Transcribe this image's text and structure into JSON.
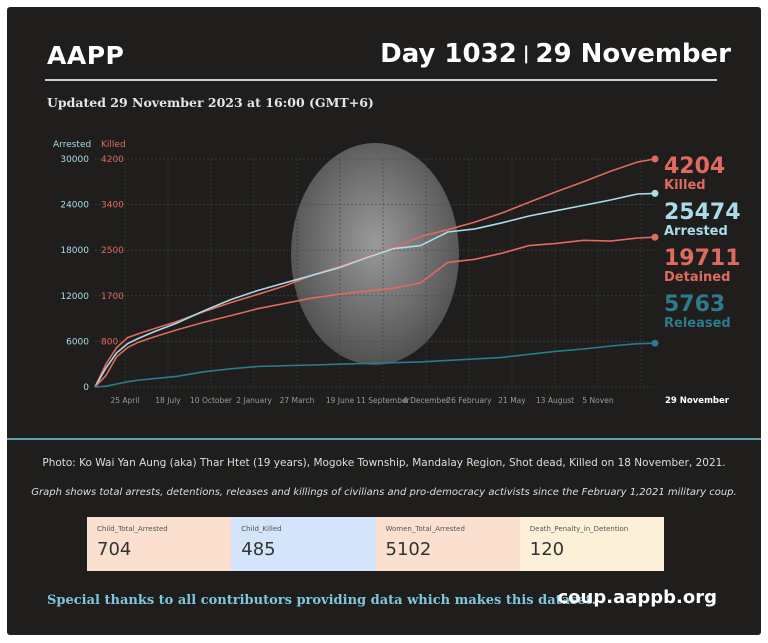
{
  "header": {
    "brand": "AAPP",
    "day": "Day 1032",
    "separator": "|",
    "date": "29 November",
    "updated": "Updated 29 November 2023 at 16:00 (GMT+6)"
  },
  "chart_data": {
    "type": "line",
    "axes": {
      "left_title": "Arrested",
      "right_title": "Killed",
      "left_ticks": [
        0,
        6000,
        12000,
        18000,
        24000,
        30000
      ],
      "left_tick_labels": [
        "0",
        "6000",
        "12000",
        "18000",
        "24000",
        "30000"
      ],
      "right_tick_labels": [
        "800",
        "1700",
        "2500",
        "3400",
        "4200"
      ],
      "ylim": [
        0,
        30000
      ],
      "x_tick_labels": [
        "25 April",
        "18 July",
        "10 October",
        "2 January",
        "27 March",
        "19 June",
        "11 September",
        "4 December",
        "26 February",
        "21 May",
        "13 August",
        "5 Noven",
        "29 November"
      ],
      "grid": true
    },
    "x_range": [
      0,
      1032
    ],
    "series": [
      {
        "name": "Killed",
        "color": "#e06a5f",
        "final_value": "4204",
        "x": [
          0,
          20,
          40,
          60,
          80,
          110,
          150,
          200,
          250,
          300,
          350,
          400,
          450,
          500,
          550,
          600,
          650,
          700,
          750,
          800,
          850,
          900,
          950,
          1000,
          1032
        ],
        "y": [
          0,
          3000,
          5200,
          6500,
          7000,
          7700,
          8600,
          9900,
          11100,
          12200,
          13300,
          14700,
          15900,
          17100,
          18300,
          19800,
          20700,
          21700,
          22900,
          24300,
          25700,
          27000,
          28400,
          29600,
          30000
        ]
      },
      {
        "name": "Arrested",
        "color": "#a9dbe8",
        "final_value": "25474",
        "x": [
          0,
          20,
          40,
          60,
          80,
          110,
          150,
          200,
          250,
          300,
          350,
          400,
          450,
          500,
          550,
          600,
          650,
          700,
          750,
          800,
          850,
          900,
          950,
          1000,
          1032
        ],
        "y": [
          0,
          2500,
          4500,
          5700,
          6400,
          7300,
          8400,
          10000,
          11500,
          12700,
          13700,
          14700,
          15700,
          17000,
          18200,
          18600,
          20400,
          20800,
          21600,
          22500,
          23200,
          23900,
          24600,
          25400,
          25474
        ]
      },
      {
        "name": "Detained",
        "color": "#e06a5f",
        "final_value": "19711",
        "x": [
          0,
          20,
          40,
          60,
          80,
          110,
          150,
          200,
          250,
          300,
          350,
          400,
          450,
          500,
          550,
          600,
          650,
          700,
          750,
          800,
          850,
          900,
          950,
          1000,
          1032
        ],
        "y": [
          0,
          1500,
          4000,
          5200,
          5900,
          6600,
          7500,
          8500,
          9400,
          10300,
          11000,
          11700,
          12200,
          12600,
          13000,
          13700,
          16400,
          16800,
          17600,
          18600,
          18900,
          19300,
          19200,
          19600,
          19711
        ]
      },
      {
        "name": "Released",
        "color": "#2c7a8c",
        "final_value": "5763",
        "x": [
          0,
          20,
          40,
          60,
          80,
          110,
          150,
          200,
          250,
          300,
          350,
          400,
          450,
          500,
          550,
          600,
          650,
          700,
          750,
          800,
          850,
          900,
          950,
          1000,
          1032
        ],
        "y": [
          0,
          100,
          400,
          700,
          900,
          1100,
          1400,
          2000,
          2400,
          2700,
          2800,
          2900,
          3000,
          3100,
          3200,
          3300,
          3500,
          3700,
          3900,
          4300,
          4700,
          5000,
          5400,
          5700,
          5763
        ]
      }
    ]
  },
  "photo_caption": "Photo: Ko Wai Yan Aung (aka) Thar Htet (19 years), Mogoke Township, Mandalay Region, Shot dead, Killed on 18 November, 2021.",
  "graph_note": "Graph shows total arrests, detentions, releases and killings of civilians and pro-democracy activists since the February 1,2021 military coup.",
  "stats": [
    {
      "label": "Child_Total_Arrested",
      "value": "704",
      "bg": "#fbe0d0"
    },
    {
      "label": "Child_Killed",
      "value": "485",
      "bg": "#d3e4fb"
    },
    {
      "label": "Women_Total_Arrested",
      "value": "5102",
      "bg": "#fbe0d0"
    },
    {
      "label": "Death_Penalty_in_Detention",
      "value": "120",
      "bg": "#fdf0d8"
    }
  ],
  "footer": {
    "thanks": "Special thanks to all contributors providing data which makes this dataset.",
    "site": "coup.aappb.org"
  },
  "colors": {
    "background": "#1f1e1d",
    "killed": "#e06a5f",
    "arrested": "#a9dbe8",
    "released": "#2c7a8c"
  }
}
